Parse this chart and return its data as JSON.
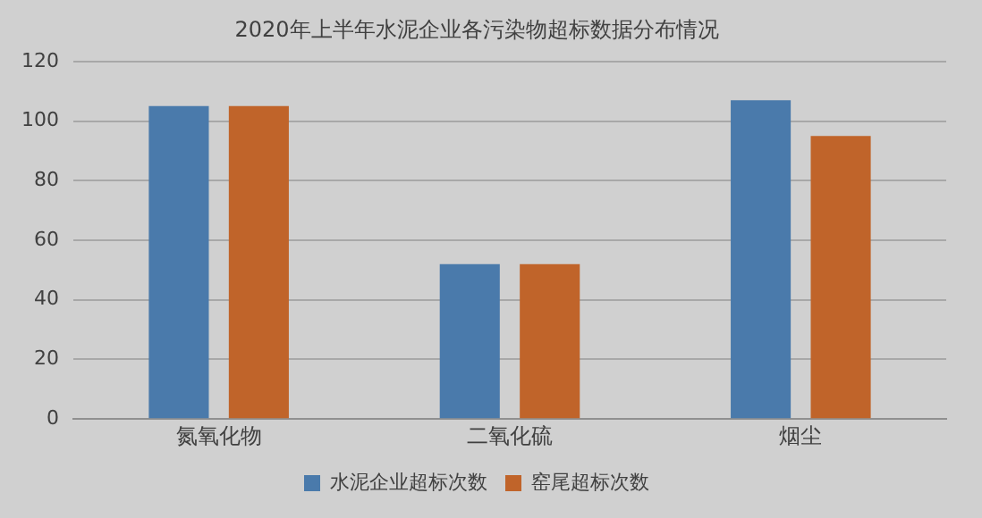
{
  "chart_data": {
    "type": "bar",
    "title": "2020年上半年水泥企业各污染物超标数据分布情况",
    "categories": [
      "氮氧化物",
      "二氧化硫",
      "烟尘"
    ],
    "series": [
      {
        "name": "水泥企业超标次数",
        "color": "#4a7aab",
        "values": [
          105,
          52,
          107
        ]
      },
      {
        "name": "窑尾超标次数",
        "color": "#c0642a",
        "values": [
          105,
          52,
          95
        ]
      }
    ],
    "ylim": [
      0,
      120
    ],
    "yticks": [
      0,
      20,
      40,
      60,
      80,
      100,
      120
    ],
    "grid": "y",
    "legend": "bottom"
  }
}
